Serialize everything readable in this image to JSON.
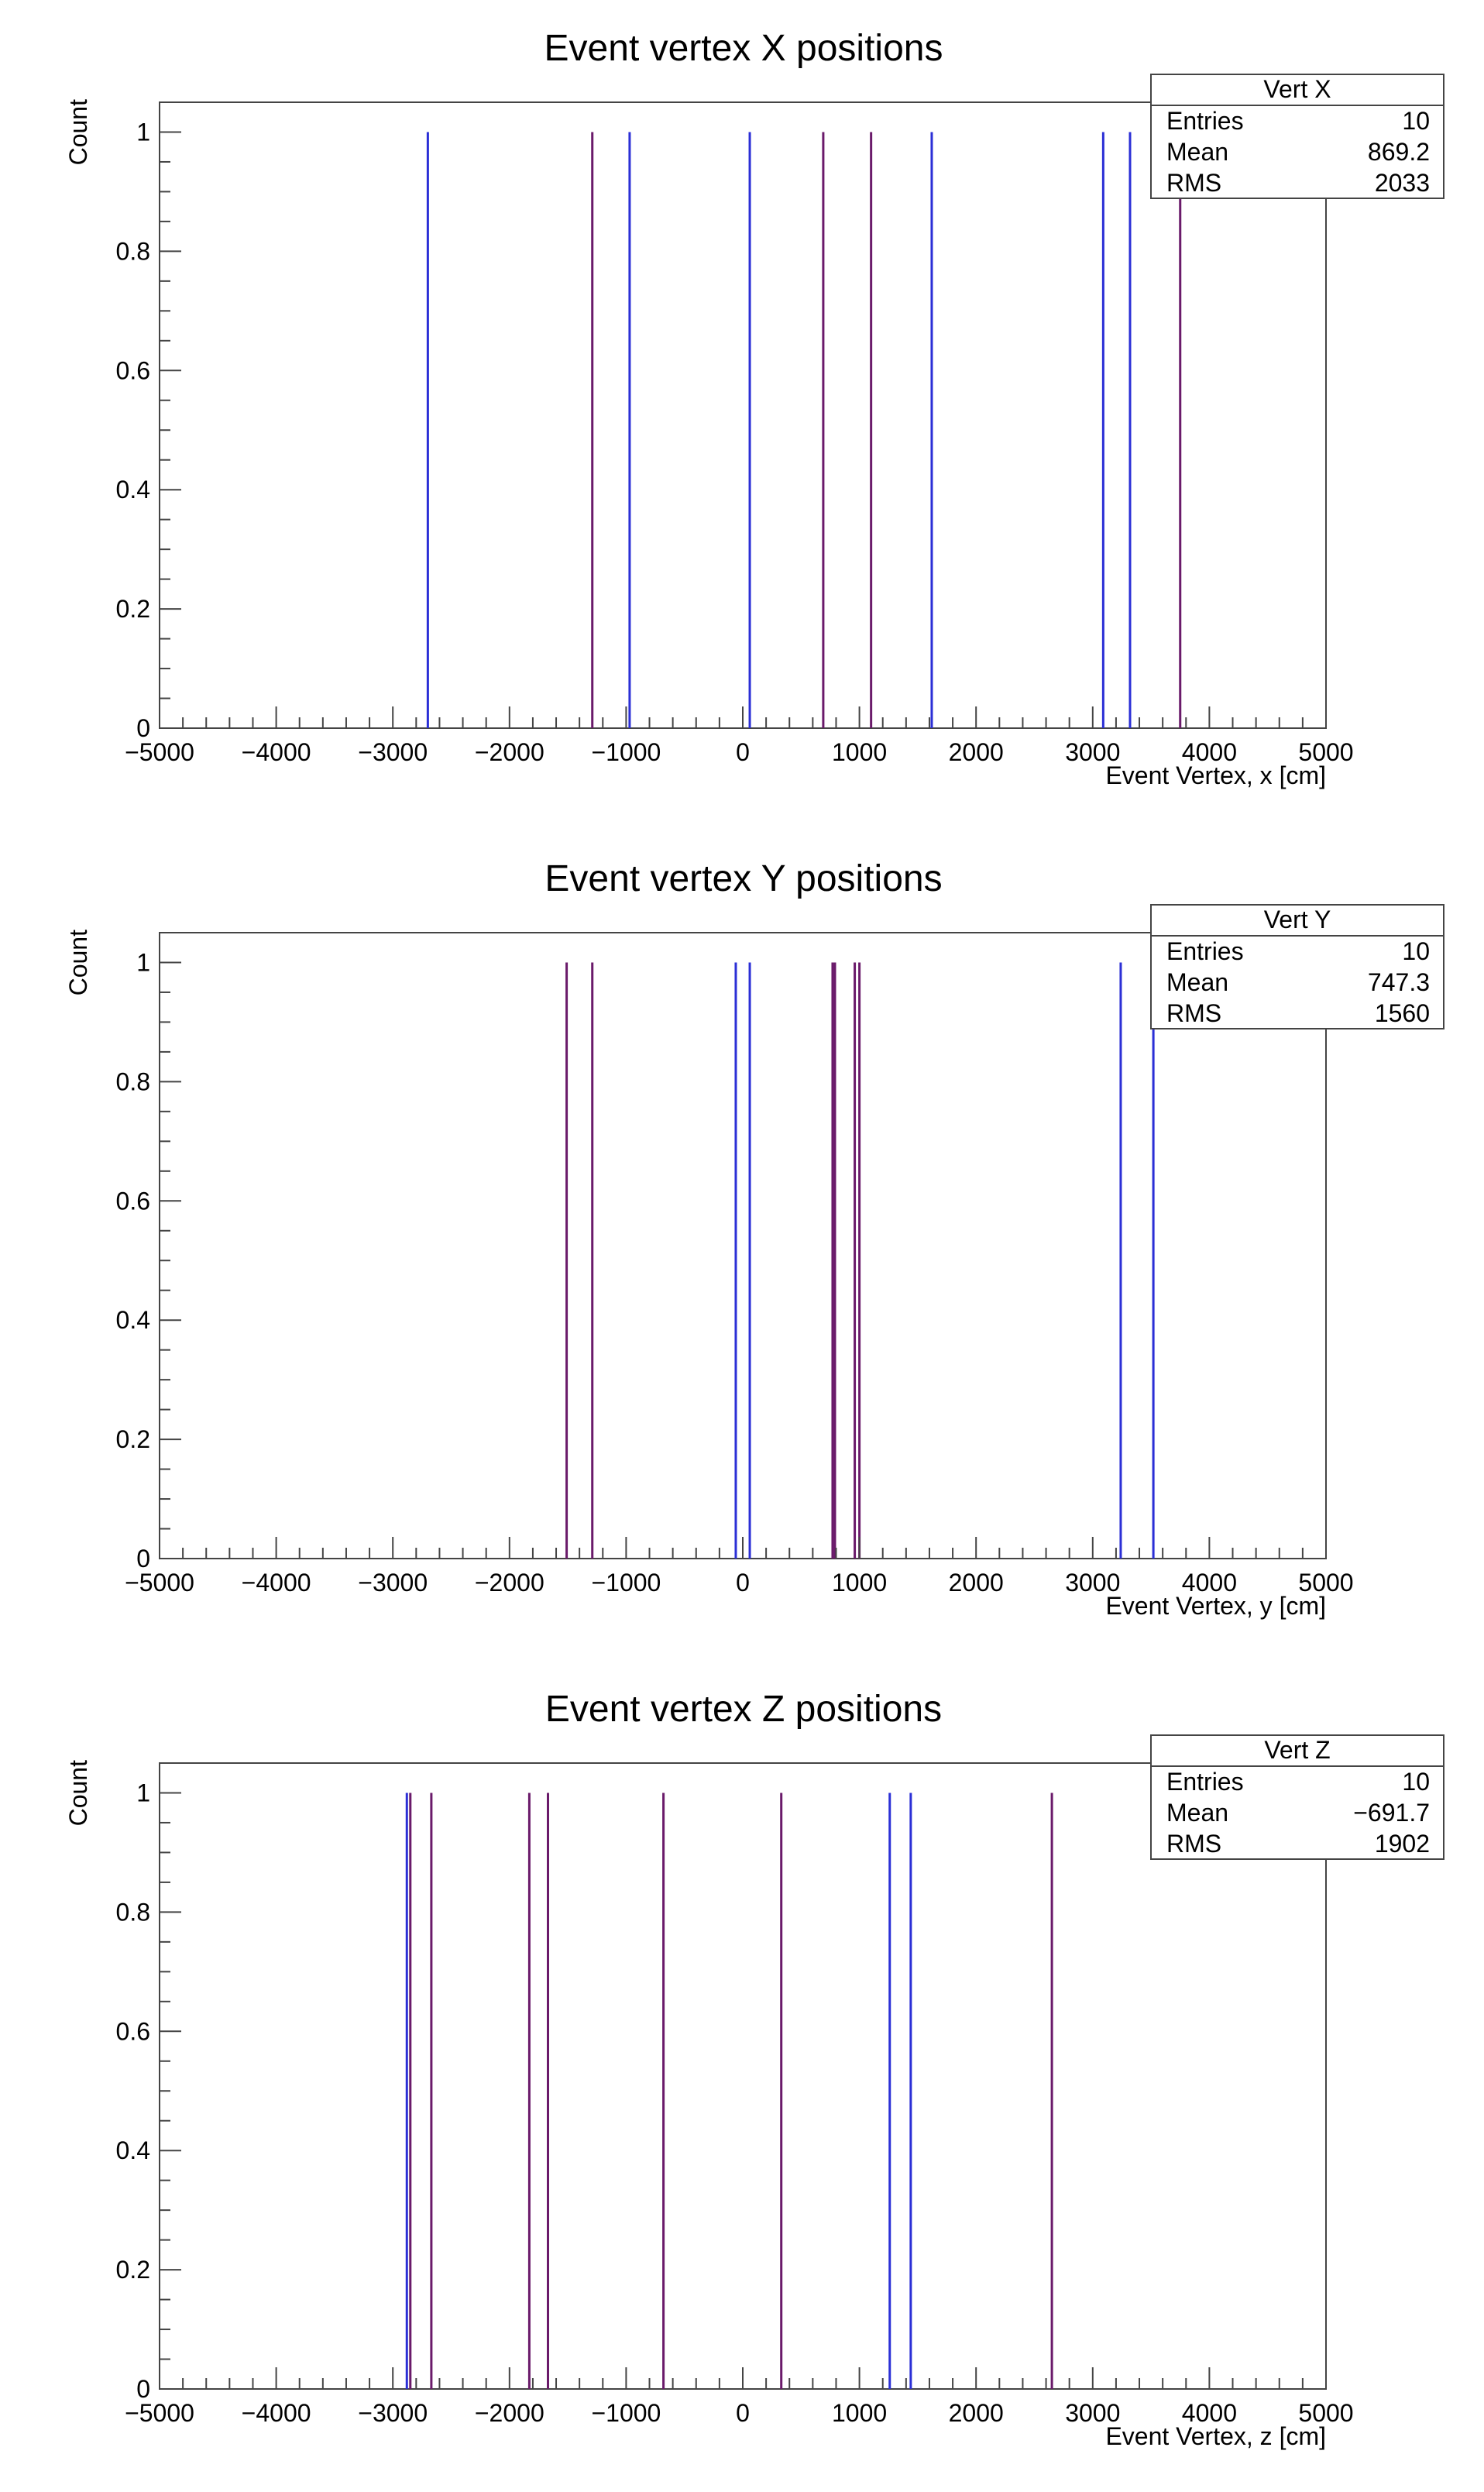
{
  "chart_data": [
    {
      "type": "bar",
      "title": "Event vertex X positions",
      "xlabel": "Event Vertex, x [cm]",
      "ylabel": "Count",
      "xlim": [
        -5000,
        5000
      ],
      "ylim": [
        0,
        1.05
      ],
      "xticks": [
        "−5000",
        "−4000",
        "−3000",
        "−2000",
        "−1000",
        "0",
        "1000",
        "2000",
        "3000",
        "4000",
        "5000"
      ],
      "yticks": [
        "0",
        "0.2",
        "0.4",
        "0.6",
        "0.8",
        "1"
      ],
      "grid": false,
      "x": [
        -2700,
        -1290,
        -970,
        60,
        690,
        1100,
        1620,
        3090,
        3320,
        3750
      ],
      "values": [
        1,
        1,
        1,
        1,
        1,
        1,
        1,
        1,
        1,
        1
      ],
      "colors": [
        "#2b2fd6",
        "#6a1a6a",
        "#2b2fd6",
        "#2b2fd6",
        "#6a1a6a",
        "#6a1a6a",
        "#2b2fd6",
        "#2b2fd6",
        "#2b2fd6",
        "#6a1a6a"
      ],
      "stats": {
        "name": "Vert X",
        "rows": [
          {
            "label": "Entries",
            "value": "10"
          },
          {
            "label": "Mean",
            "value": "869.2"
          },
          {
            "label": "RMS",
            "value": "2033"
          }
        ]
      }
    },
    {
      "type": "bar",
      "title": "Event vertex Y positions",
      "xlabel": "Event Vertex, y [cm]",
      "ylabel": "Count",
      "xlim": [
        -5000,
        5000
      ],
      "ylim": [
        0,
        1.05
      ],
      "xticks": [
        "−5000",
        "−4000",
        "−3000",
        "−2000",
        "−1000",
        "0",
        "1000",
        "2000",
        "3000",
        "4000",
        "5000"
      ],
      "yticks": [
        "0",
        "0.2",
        "0.4",
        "0.6",
        "0.8",
        "1"
      ],
      "grid": false,
      "x": [
        -1510,
        -1290,
        -60,
        60,
        770,
        790,
        960,
        1000,
        3240,
        3520
      ],
      "values": [
        1,
        1,
        1,
        1,
        1,
        1,
        1,
        1,
        1,
        1
      ],
      "colors": [
        "#6a1a6a",
        "#6a1a6a",
        "#2b2fd6",
        "#2b2fd6",
        "#6a1a6a",
        "#6a1a6a",
        "#6a1a6a",
        "#6a1a6a",
        "#2b2fd6",
        "#2b2fd6"
      ],
      "stats": {
        "name": "Vert Y",
        "rows": [
          {
            "label": "Entries",
            "value": "10"
          },
          {
            "label": "Mean",
            "value": "747.3"
          },
          {
            "label": "RMS",
            "value": "1560"
          }
        ]
      }
    },
    {
      "type": "bar",
      "title": "Event vertex Z positions",
      "xlabel": "Event Vertex, z [cm]",
      "ylabel": "Count",
      "xlim": [
        -5000,
        5000
      ],
      "ylim": [
        0,
        1.05
      ],
      "xticks": [
        "−5000",
        "−4000",
        "−3000",
        "−2000",
        "−1000",
        "0",
        "1000",
        "2000",
        "3000",
        "4000",
        "5000"
      ],
      "yticks": [
        "0",
        "0.2",
        "0.4",
        "0.6",
        "0.8",
        "1"
      ],
      "grid": false,
      "x": [
        -2880,
        -2850,
        -2670,
        -1830,
        -1670,
        -680,
        330,
        1260,
        1440,
        2650
      ],
      "values": [
        1,
        1,
        1,
        1,
        1,
        1,
        1,
        1,
        1,
        1
      ],
      "colors": [
        "#2b2fd6",
        "#6a1a6a",
        "#6a1a6a",
        "#6a1a6a",
        "#6a1a6a",
        "#6a1a6a",
        "#6a1a6a",
        "#2b2fd6",
        "#2b2fd6",
        "#6a1a6a"
      ],
      "stats": {
        "name": "Vert Z",
        "rows": [
          {
            "label": "Entries",
            "value": "10"
          },
          {
            "label": "Mean",
            "value": "−691.7"
          },
          {
            "label": "RMS",
            "value": "1902"
          }
        ]
      }
    }
  ]
}
